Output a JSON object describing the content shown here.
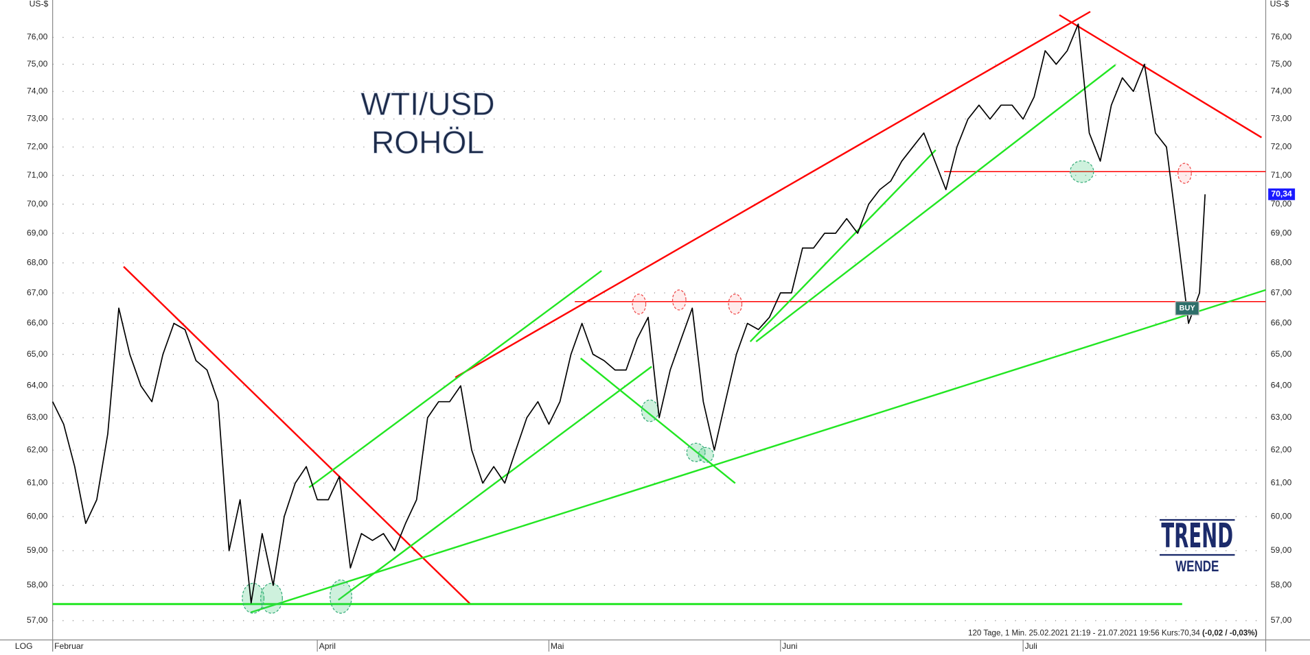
{
  "chart_data": {
    "type": "line",
    "title": "WTI/USD",
    "subtitle": "ROHÖL",
    "y_unit": "US-$",
    "scale_label": "LOG",
    "log_scale": true,
    "grid": true,
    "footer": "120 Tage, 1 Min. 25.02.2021 21:19 - 21.07.2021 19:56  Kurs:70,34",
    "footer_change": "(-0,02 / -0,03%)",
    "signal": "BUY",
    "logo": "TREND",
    "logo_sub": "WENDE",
    "last_price": {
      "value": 70.34,
      "label": "70,34"
    },
    "xlim": [
      0,
      110
    ],
    "xticks": [
      {
        "value": 0,
        "label": "Februar"
      },
      {
        "value": 24,
        "label": "April"
      },
      {
        "value": 45,
        "label": "Mai"
      },
      {
        "value": 66,
        "label": "Juni"
      },
      {
        "value": 88,
        "label": "Juli"
      }
    ],
    "ylim": [
      56.46,
      77.16
    ],
    "yticks": [
      {
        "value": 57,
        "label": "57,00"
      },
      {
        "value": 58,
        "label": "58,00"
      },
      {
        "value": 59,
        "label": "59,00"
      },
      {
        "value": 60,
        "label": "60,00"
      },
      {
        "value": 61,
        "label": "61,00"
      },
      {
        "value": 62,
        "label": "62,00"
      },
      {
        "value": 63,
        "label": "63,00"
      },
      {
        "value": 64,
        "label": "64,00"
      },
      {
        "value": 65,
        "label": "65,00"
      },
      {
        "value": 66,
        "label": "66,00"
      },
      {
        "value": 67,
        "label": "67,00"
      },
      {
        "value": 68,
        "label": "68,00"
      },
      {
        "value": 69,
        "label": "69,00"
      },
      {
        "value": 70,
        "label": "70,00"
      },
      {
        "value": 71,
        "label": "71,00"
      },
      {
        "value": 72,
        "label": "72,00"
      },
      {
        "value": 73,
        "label": "73,00"
      },
      {
        "value": 74,
        "label": "74,00"
      },
      {
        "value": 75,
        "label": "75,00"
      },
      {
        "value": 76,
        "label": "76,00"
      }
    ],
    "x": [
      0,
      1,
      2,
      3,
      4,
      5,
      6,
      7,
      8,
      9,
      10,
      11,
      12,
      13,
      14,
      15,
      16,
      17,
      18,
      19,
      20,
      21,
      22,
      23,
      24,
      25,
      26,
      27,
      28,
      29,
      30,
      31,
      32,
      33,
      34,
      35,
      36,
      37,
      38,
      39,
      40,
      41,
      42,
      43,
      44,
      45,
      46,
      47,
      48,
      49,
      50,
      51,
      52,
      53,
      54,
      55,
      56,
      57,
      58,
      59,
      60,
      61,
      62,
      63,
      64,
      65,
      66,
      67,
      68,
      69,
      70,
      71,
      72,
      73,
      74,
      75,
      76,
      77,
      78,
      79,
      80,
      81,
      82,
      83,
      84,
      85,
      86,
      87,
      88,
      89,
      90,
      91,
      92,
      93,
      94,
      95,
      96,
      97,
      98,
      99,
      100,
      101,
      102,
      103,
      104,
      104.5
    ],
    "series": [
      {
        "color": "#000000",
        "values": [
          63.5,
          62.8,
          61.5,
          59.8,
          60.5,
          62.5,
          66.5,
          65.0,
          64.0,
          63.5,
          65.0,
          66.0,
          65.8,
          64.8,
          64.5,
          63.5,
          59.0,
          60.5,
          57.5,
          59.5,
          58.0,
          60.0,
          61.0,
          61.5,
          60.5,
          60.5,
          61.2,
          58.5,
          59.5,
          59.3,
          59.5,
          59.0,
          59.8,
          60.5,
          63.0,
          63.5,
          63.5,
          64.0,
          62.0,
          61.0,
          61.5,
          61.0,
          62.0,
          63.0,
          63.5,
          62.8,
          63.5,
          65.0,
          66.0,
          65.0,
          64.8,
          64.5,
          64.5,
          65.5,
          66.2,
          63.0,
          64.5,
          65.5,
          66.5,
          63.5,
          62.0,
          63.5,
          65.0,
          66.0,
          65.8,
          66.2,
          67.0,
          67.0,
          68.5,
          68.5,
          69.0,
          69.0,
          69.5,
          69.0,
          70.0,
          70.5,
          70.8,
          71.5,
          72.0,
          72.5,
          71.5,
          70.5,
          72.0,
          73.0,
          73.5,
          73.0,
          73.5,
          73.5,
          73.0,
          73.8,
          75.5,
          75.0,
          75.5,
          76.5,
          72.5,
          71.5,
          73.5,
          74.5,
          74.0,
          75.0,
          72.5,
          72.0,
          69.0,
          66.0,
          67.0,
          70.34
        ]
      }
    ]
  }
}
